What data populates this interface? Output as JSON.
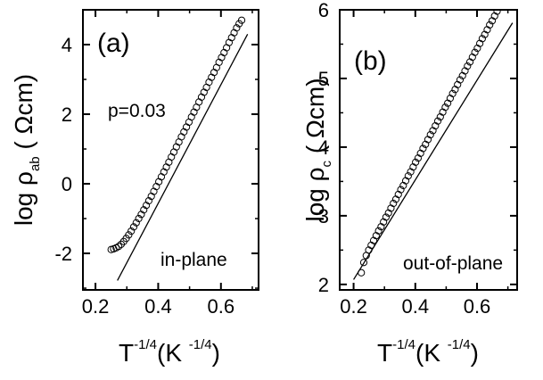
{
  "chart_data": [
    {
      "type": "scatter",
      "panel_label": "(a)",
      "ylabel": {
        "prefix": "log ρ",
        "sub": "ab",
        "suffix": "( Ωcm)"
      },
      "xlabel": {
        "base": "T",
        "exp": "-1/4",
        "unit_open": "(K ",
        "unit_exp": "-1/4",
        "unit_close": ")"
      },
      "annotations": {
        "dopant": "p=0.03",
        "direction": "in-plane"
      },
      "xlim": [
        0.16,
        0.72
      ],
      "ylim": [
        -3.05,
        5.0
      ],
      "x_ticks": [
        0.2,
        0.4,
        0.6
      ],
      "x_tick_labels": [
        "0.2",
        "0.4",
        "0.6"
      ],
      "y_ticks": [
        -2,
        0,
        2,
        4
      ],
      "y_tick_labels": [
        "-2",
        "0",
        "2",
        "4"
      ],
      "grid": false,
      "series": [
        {
          "marker": "open-circle",
          "x": [
            0.25,
            0.258,
            0.266,
            0.274,
            0.282,
            0.29,
            0.298,
            0.306,
            0.314,
            0.322,
            0.33,
            0.338,
            0.346,
            0.354,
            0.362,
            0.37,
            0.378,
            0.386,
            0.394,
            0.402,
            0.41,
            0.418,
            0.426,
            0.434,
            0.442,
            0.45,
            0.458,
            0.466,
            0.474,
            0.482,
            0.49,
            0.498,
            0.506,
            0.514,
            0.522,
            0.53,
            0.538,
            0.546,
            0.554,
            0.562,
            0.57,
            0.578,
            0.586,
            0.594,
            0.602,
            0.61,
            0.618,
            0.626,
            0.634,
            0.642,
            0.65,
            0.658,
            0.666
          ],
          "y": [
            -1.89,
            -1.87,
            -1.84,
            -1.8,
            -1.74,
            -1.66,
            -1.57,
            -1.47,
            -1.36,
            -1.24,
            -1.12,
            -1.0,
            -0.88,
            -0.75,
            -0.62,
            -0.49,
            -0.36,
            -0.22,
            -0.08,
            0.06,
            0.2,
            0.34,
            0.48,
            0.62,
            0.77,
            0.91,
            1.06,
            1.2,
            1.35,
            1.49,
            1.63,
            1.77,
            1.92,
            2.06,
            2.2,
            2.35,
            2.49,
            2.63,
            2.77,
            2.92,
            3.06,
            3.2,
            3.34,
            3.49,
            3.63,
            3.77,
            3.91,
            4.06,
            4.2,
            4.34,
            4.48,
            4.6,
            4.7
          ]
        }
      ],
      "fit_line": {
        "x": [
          0.27,
          0.685
        ],
        "y": [
          -2.78,
          4.3
        ]
      }
    },
    {
      "type": "scatter",
      "panel_label": "(b)",
      "ylabel": {
        "prefix": "log ρ",
        "sub": "c",
        "suffix": "( Ωcm)"
      },
      "xlabel": {
        "base": "T",
        "exp": "-1/4",
        "unit_open": "(K ",
        "unit_exp": "-1/4",
        "unit_close": ")"
      },
      "annotations": {
        "direction": "out-of-plane"
      },
      "xlim": [
        0.155,
        0.73
      ],
      "ylim": [
        1.92,
        6.0
      ],
      "x_ticks": [
        0.2,
        0.4,
        0.6
      ],
      "x_tick_labels": [
        "0.2",
        "0.4",
        "0.6"
      ],
      "y_ticks": [
        2,
        3,
        4,
        5,
        6
      ],
      "y_tick_labels": [
        "2",
        "3",
        "4",
        "5",
        "6"
      ],
      "grid": false,
      "series": [
        {
          "marker": "open-circle",
          "x": [
            0.225,
            0.233,
            0.241,
            0.249,
            0.257,
            0.265,
            0.273,
            0.281,
            0.289,
            0.297,
            0.305,
            0.313,
            0.321,
            0.329,
            0.337,
            0.345,
            0.353,
            0.361,
            0.369,
            0.377,
            0.385,
            0.393,
            0.401,
            0.409,
            0.417,
            0.425,
            0.433,
            0.441,
            0.449,
            0.457,
            0.465,
            0.473,
            0.481,
            0.489,
            0.497,
            0.505,
            0.513,
            0.521,
            0.529,
            0.537,
            0.545,
            0.553,
            0.561,
            0.569,
            0.577,
            0.585,
            0.593,
            0.601,
            0.609,
            0.617,
            0.625,
            0.633,
            0.641,
            0.649,
            0.657,
            0.665,
            0.673
          ],
          "y": [
            2.17,
            2.32,
            2.42,
            2.5,
            2.57,
            2.64,
            2.71,
            2.78,
            2.84,
            2.91,
            2.98,
            3.04,
            3.11,
            3.18,
            3.24,
            3.31,
            3.38,
            3.44,
            3.51,
            3.58,
            3.64,
            3.71,
            3.78,
            3.84,
            3.91,
            3.98,
            4.04,
            4.11,
            4.18,
            4.24,
            4.31,
            4.38,
            4.44,
            4.51,
            4.58,
            4.64,
            4.71,
            4.78,
            4.84,
            4.91,
            4.98,
            5.04,
            5.11,
            5.18,
            5.24,
            5.31,
            5.38,
            5.44,
            5.51,
            5.58,
            5.64,
            5.71,
            5.78,
            5.84,
            5.91,
            5.98,
            6.04
          ]
        }
      ],
      "fit_line": {
        "x": [
          0.2,
          0.715
        ],
        "y": [
          2.07,
          5.81
        ]
      }
    }
  ]
}
